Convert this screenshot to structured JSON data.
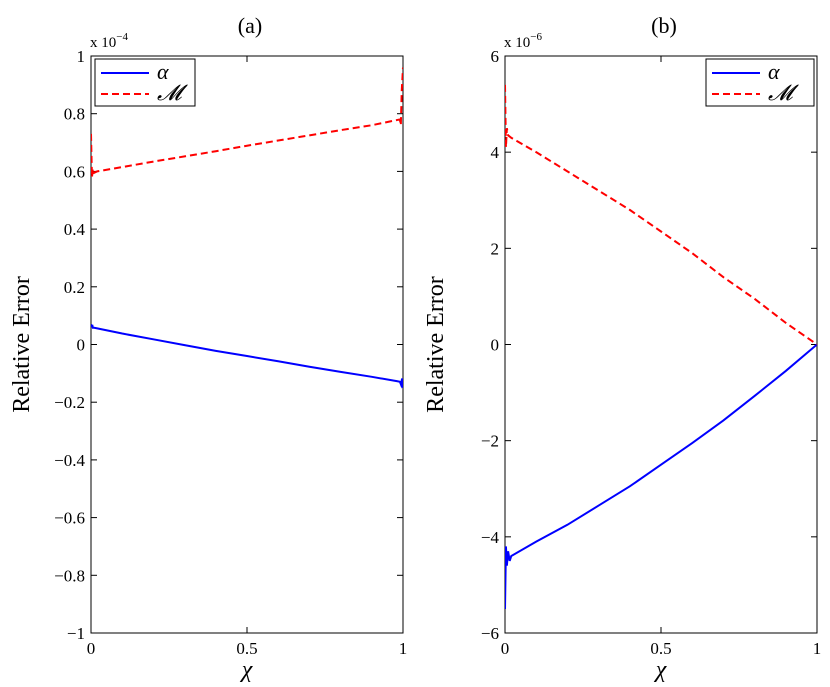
{
  "chart_data": [
    {
      "type": "line",
      "title": "(a)",
      "xlabel": "χ",
      "ylabel": "Relative Error",
      "y_multiplier_label": "x 10",
      "y_multiplier_exp": "−4",
      "xlim": [
        0,
        1
      ],
      "ylim": [
        -1,
        1
      ],
      "xticks": [
        0,
        0.5,
        1
      ],
      "xtick_labels": [
        "0",
        "0.5",
        "1"
      ],
      "yticks": [
        -1,
        -0.8,
        -0.6,
        -0.4,
        -0.2,
        0,
        0.2,
        0.4,
        0.6,
        0.8,
        1
      ],
      "ytick_labels": [
        "−1",
        "−0.8",
        "−0.6",
        "−0.4",
        "−0.2",
        "0",
        "0.2",
        "0.4",
        "0.6",
        "0.8",
        "1"
      ],
      "legend_position": "top-left",
      "series": [
        {
          "name": "α",
          "color": "#0000ff",
          "dash": "solid",
          "x": [
            0,
            0.002,
            0.004,
            0.006,
            0.01,
            0.02,
            0.1,
            0.2,
            0.3,
            0.4,
            0.5,
            0.6,
            0.7,
            0.8,
            0.9,
            0.98,
            0.99,
            0.994,
            0.997,
            1.0
          ],
          "y": [
            0.07,
            0.06,
            0.068,
            0.058,
            0.058,
            0.056,
            0.038,
            0.018,
            -0.002,
            -0.022,
            -0.04,
            -0.058,
            -0.077,
            -0.095,
            -0.112,
            -0.127,
            -0.129,
            -0.14,
            -0.118,
            -0.15
          ]
        },
        {
          "name": "𝓜",
          "color": "#ff0000",
          "dash": "dashed",
          "x": [
            0,
            0.003,
            0.006,
            0.01,
            0.02,
            0.1,
            0.2,
            0.3,
            0.4,
            0.5,
            0.6,
            0.7,
            0.8,
            0.9,
            0.98,
            0.99,
            0.993,
            0.996,
            1.0
          ],
          "y": [
            0.73,
            0.58,
            0.61,
            0.595,
            0.6,
            0.615,
            0.634,
            0.652,
            0.67,
            0.689,
            0.707,
            0.725,
            0.743,
            0.76,
            0.778,
            0.78,
            0.76,
            0.88,
            0.96
          ]
        }
      ]
    },
    {
      "type": "line",
      "title": "(b)",
      "xlabel": "χ",
      "ylabel": "Relative Error",
      "y_multiplier_label": "x 10",
      "y_multiplier_exp": "−6",
      "xlim": [
        0,
        1
      ],
      "ylim": [
        -6,
        6
      ],
      "xticks": [
        0,
        0.5,
        1
      ],
      "xtick_labels": [
        "0",
        "0.5",
        "1"
      ],
      "yticks": [
        -6,
        -4,
        -2,
        0,
        2,
        4,
        6
      ],
      "ytick_labels": [
        "−6",
        "−4",
        "−2",
        "0",
        "2",
        "4",
        "6"
      ],
      "legend_position": "top-right",
      "series": [
        {
          "name": "α",
          "color": "#0000ff",
          "dash": "solid",
          "x": [
            0,
            0.003,
            0.006,
            0.01,
            0.015,
            0.02,
            0.1,
            0.2,
            0.3,
            0.4,
            0.5,
            0.6,
            0.7,
            0.8,
            0.9,
            1.0
          ],
          "y": [
            -5.5,
            -4.2,
            -4.6,
            -4.3,
            -4.5,
            -4.4,
            -4.1,
            -3.75,
            -3.35,
            -2.95,
            -2.5,
            -2.05,
            -1.58,
            -1.07,
            -0.55,
            0.0
          ]
        },
        {
          "name": "𝓜",
          "color": "#ff0000",
          "dash": "dashed",
          "x": [
            0,
            0.003,
            0.006,
            0.01,
            0.02,
            0.1,
            0.2,
            0.3,
            0.4,
            0.5,
            0.6,
            0.7,
            0.8,
            0.9,
            1.0
          ],
          "y": [
            5.4,
            4.1,
            4.5,
            4.35,
            4.3,
            4.0,
            3.6,
            3.2,
            2.8,
            2.35,
            1.9,
            1.4,
            0.95,
            0.45,
            0.0
          ]
        }
      ]
    }
  ]
}
